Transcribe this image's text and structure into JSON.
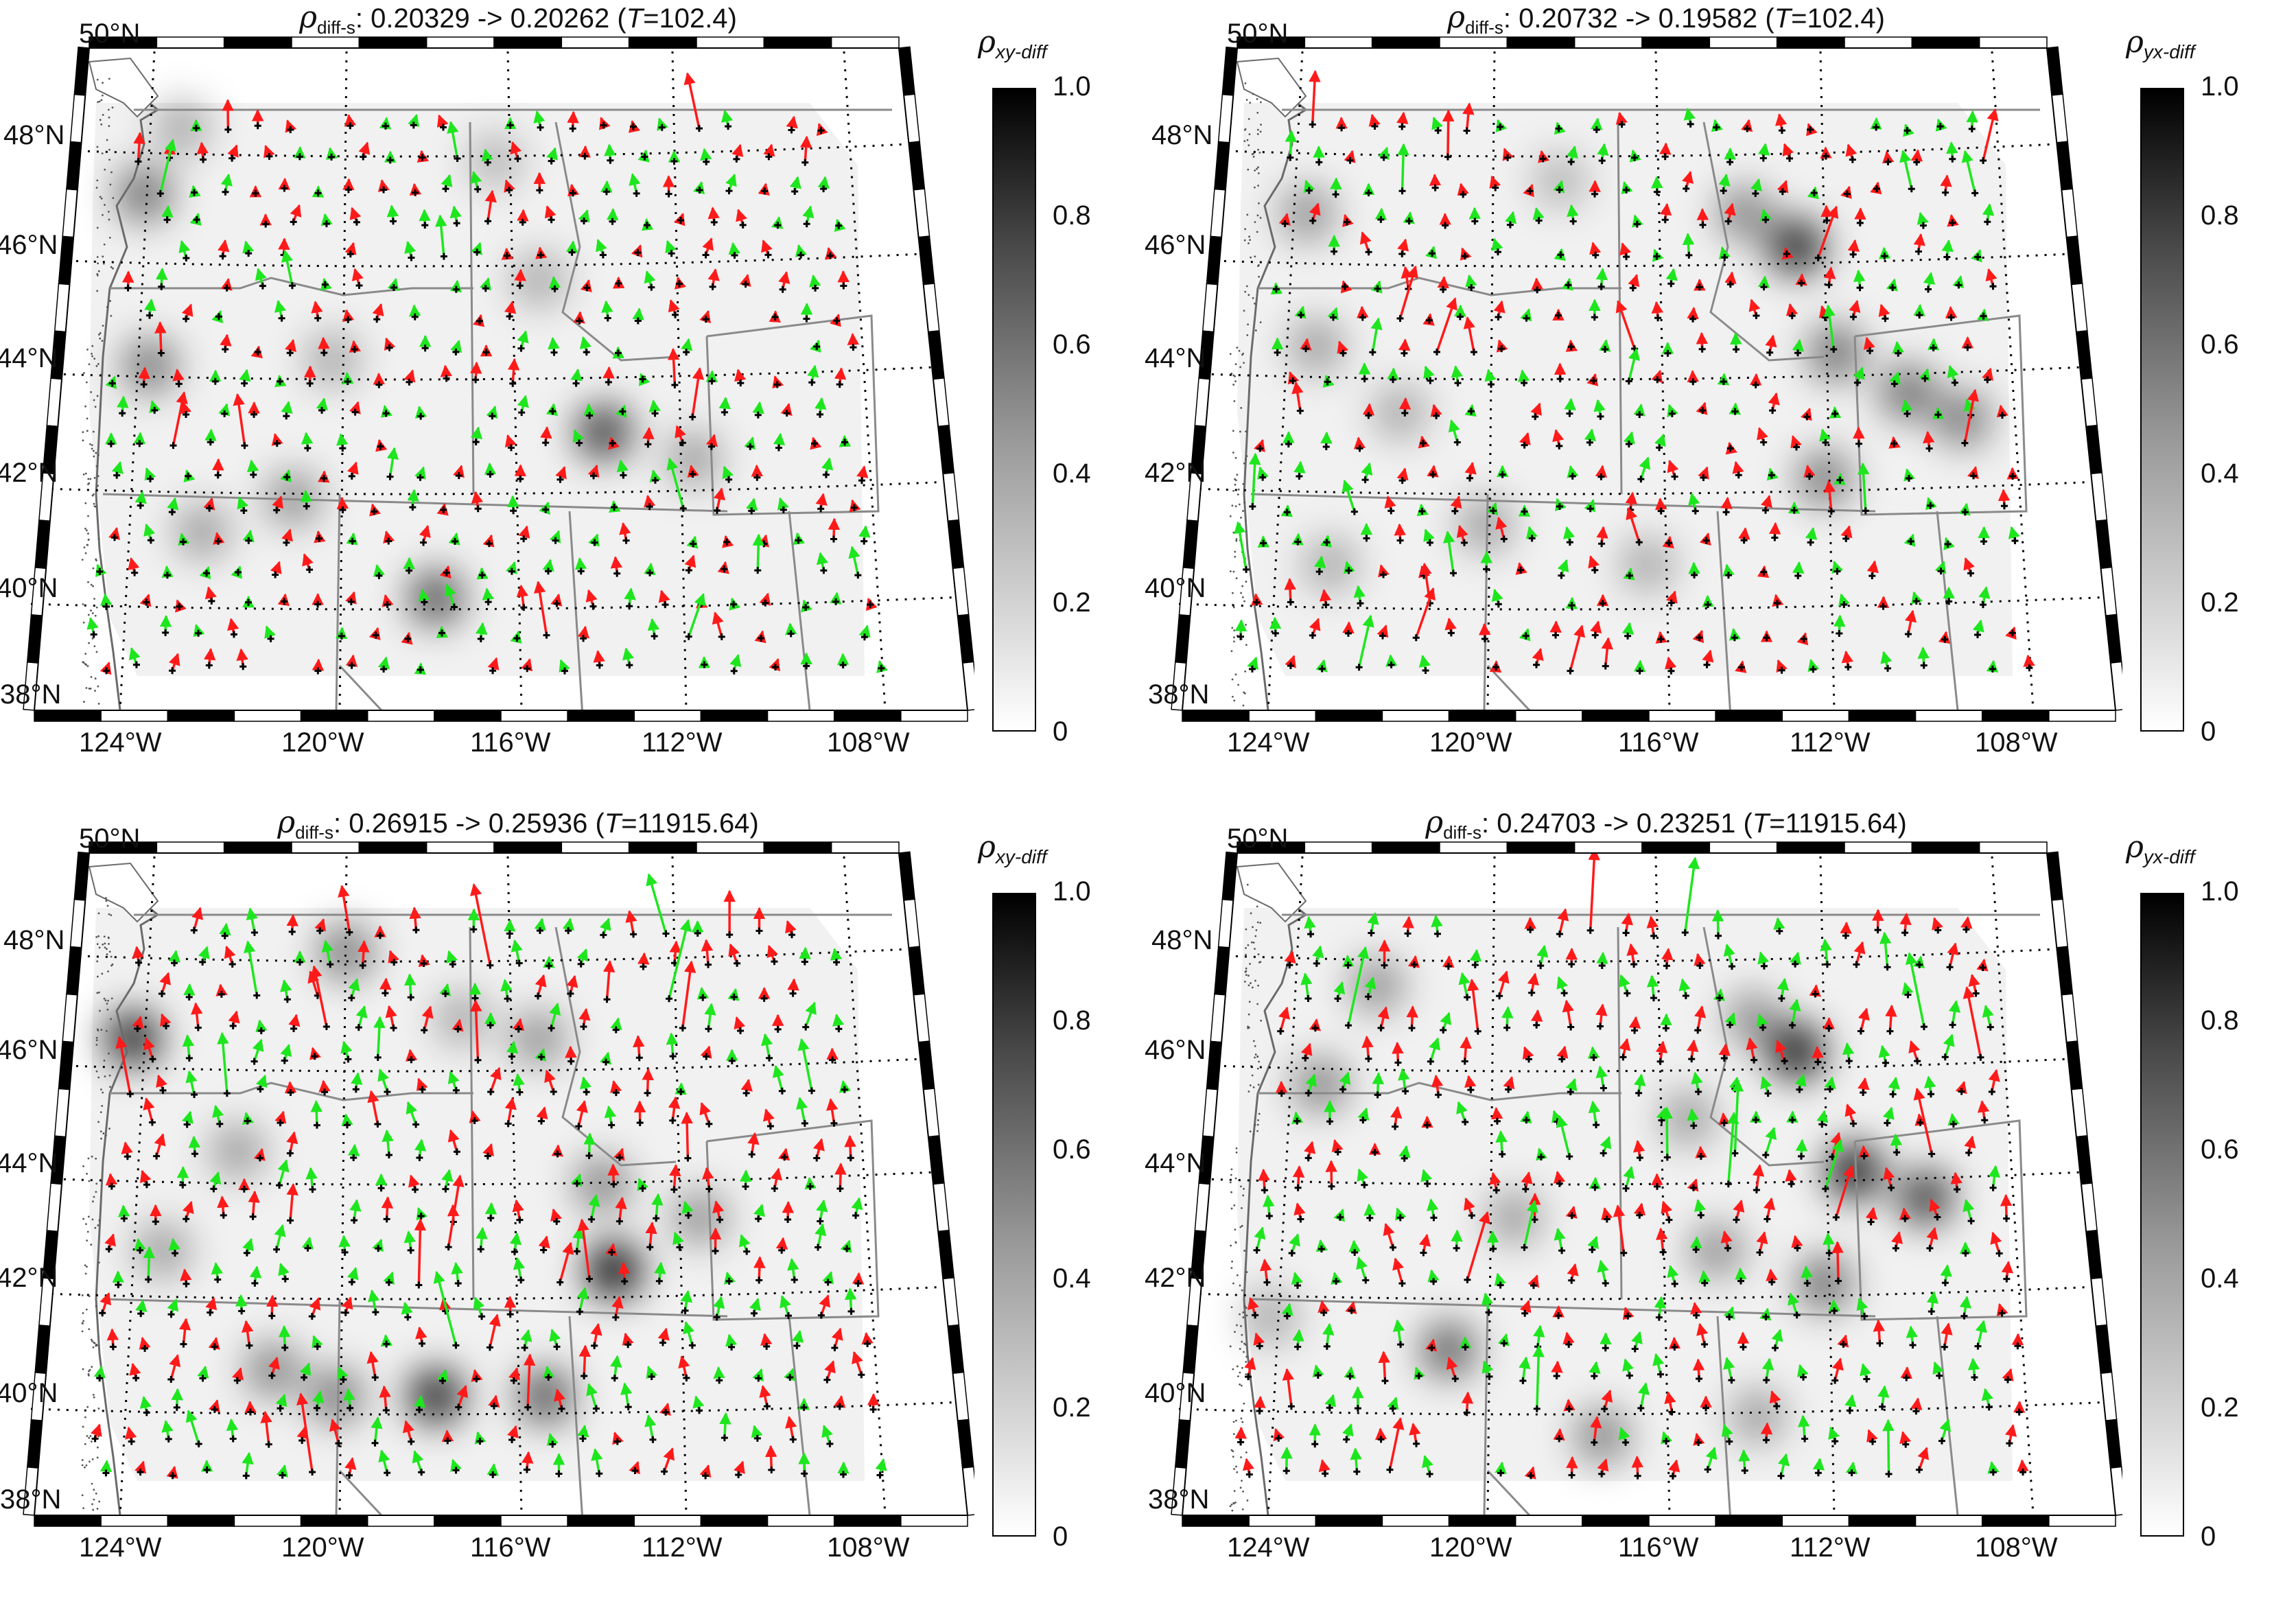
{
  "colors": {
    "red_arrow": "#ff1a1a",
    "green_arrow": "#1ee61e",
    "station": "#000000",
    "boundary": "#8a8a8a",
    "colorbar_max": "#000000",
    "colorbar_min": "#ffffff"
  },
  "shared": {
    "lat_labels": [
      "50°N",
      "48°N",
      "46°N",
      "44°N",
      "42°N",
      "40°N",
      "38°N"
    ],
    "lon_labels": [
      "124°W",
      "120°W",
      "116°W",
      "112°W",
      "108°W"
    ],
    "colorbar_ticks": [
      "1.0",
      "0.8",
      "0.6",
      "0.4",
      "0.2",
      "0"
    ],
    "rho_symbol": "ρ",
    "diff_s_sub": "diff-s"
  },
  "panels": [
    {
      "title": {
        "prefix": ": ",
        "before": "0.20329",
        "arrow": "->",
        "after": "0.20262",
        "T_label": "T",
        "T_value": "=102.4"
      },
      "colorbar_sub": "xy-diff"
    },
    {
      "title": {
        "prefix": ": ",
        "before": "0.20732",
        "arrow": "->",
        "after": "0.19582",
        "T_label": "T",
        "T_value": "=102.4"
      },
      "colorbar_sub": "yx-diff"
    },
    {
      "title": {
        "prefix": ": ",
        "before": "0.26915",
        "arrow": "->",
        "after": "0.25936",
        "T_label": "T",
        "T_value": "=11915.64"
      },
      "colorbar_sub": "xy-diff"
    },
    {
      "title": {
        "prefix": ": ",
        "before": "0.24703",
        "arrow": "->",
        "after": "0.23251",
        "T_label": "T",
        "T_value": "=11915.64"
      },
      "colorbar_sub": "yx-diff"
    }
  ]
}
